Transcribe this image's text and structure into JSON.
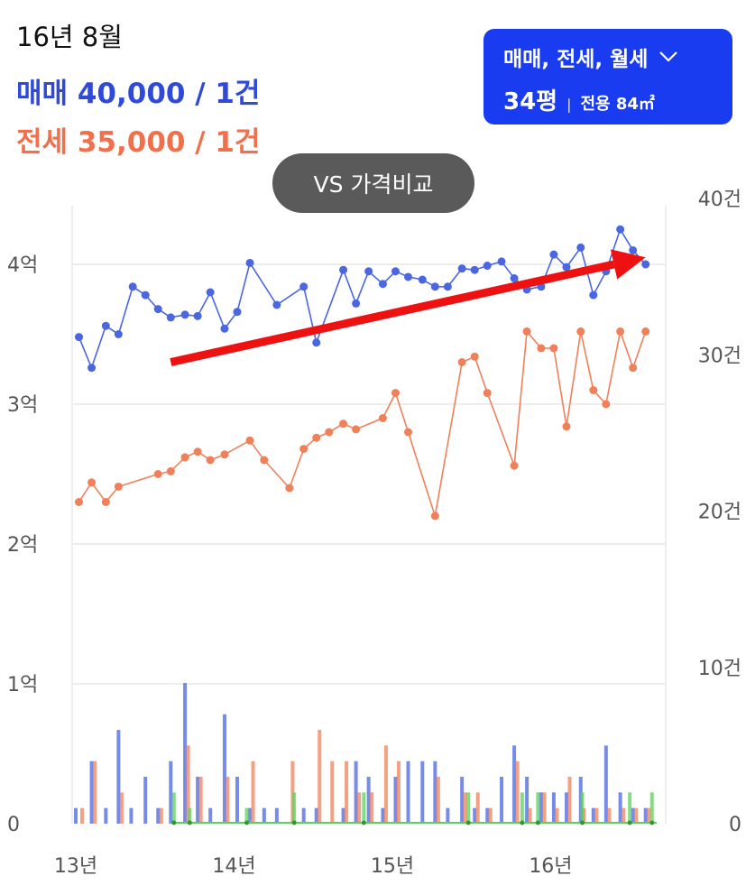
{
  "header": {
    "date": "16년 8월",
    "sale": "매매 40,000 / 1건",
    "jeonse": "전세 35,000 / 1건"
  },
  "filter": {
    "types": "매매, 전세, 월세",
    "chevron": "chevron-down-icon",
    "size": "34평",
    "separator": "|",
    "area": "전용 84㎡"
  },
  "compare_button": {
    "label": "VS 가격비교"
  },
  "colors": {
    "sale": "#4a66e0",
    "jeonse": "#f0805a",
    "monthly": "#5dcf5d",
    "arrow": "#ee1111",
    "accent": "#1a3cf0"
  },
  "chart_data": {
    "type": "line",
    "x_axis": {
      "ticks": [
        "13년",
        "14년",
        "15년",
        "16년"
      ],
      "tick_positions": [
        2013,
        2014,
        2015,
        2016
      ],
      "range": [
        2013.0,
        2016.67
      ]
    },
    "y_left": {
      "ticks": [
        "0",
        "1억",
        "2억",
        "3억",
        "4억"
      ],
      "tick_values": [
        0,
        1,
        2,
        3,
        4
      ],
      "unit": "억원",
      "range": [
        0,
        4.3
      ]
    },
    "y_right": {
      "ticks": [
        "0",
        "10건",
        "20건",
        "30건",
        "40건"
      ],
      "tick_values": [
        0,
        10,
        20,
        30,
        40
      ],
      "unit": "건",
      "range": [
        0,
        40
      ]
    },
    "grid": true,
    "arrow": {
      "from": [
        2013.6,
        3.3
      ],
      "to": [
        2016.6,
        4.05
      ]
    },
    "price_series": [
      {
        "name": "매매",
        "color": "#4a66e0",
        "points": [
          [
            2013.02,
            3.48
          ],
          [
            2013.1,
            3.26
          ],
          [
            2013.19,
            3.56
          ],
          [
            2013.27,
            3.5
          ],
          [
            2013.36,
            3.84
          ],
          [
            2013.44,
            3.78
          ],
          [
            2013.52,
            3.68
          ],
          [
            2013.6,
            3.62
          ],
          [
            2013.69,
            3.64
          ],
          [
            2013.77,
            3.63
          ],
          [
            2013.85,
            3.8
          ],
          [
            2013.94,
            3.54
          ],
          [
            2014.02,
            3.66
          ],
          [
            2014.1,
            4.01
          ],
          [
            2014.27,
            3.71
          ],
          [
            2014.44,
            3.84
          ],
          [
            2014.52,
            3.44
          ],
          [
            2014.69,
            3.96
          ],
          [
            2014.77,
            3.72
          ],
          [
            2014.85,
            3.95
          ],
          [
            2014.94,
            3.86
          ],
          [
            2015.02,
            3.95
          ],
          [
            2015.1,
            3.91
          ],
          [
            2015.19,
            3.89
          ],
          [
            2015.27,
            3.84
          ],
          [
            2015.35,
            3.84
          ],
          [
            2015.44,
            3.97
          ],
          [
            2015.52,
            3.96
          ],
          [
            2015.6,
            3.99
          ],
          [
            2015.69,
            4.02
          ],
          [
            2015.77,
            3.9
          ],
          [
            2015.85,
            3.82
          ],
          [
            2015.94,
            3.84
          ],
          [
            2016.02,
            4.07
          ],
          [
            2016.1,
            3.98
          ],
          [
            2016.19,
            4.12
          ],
          [
            2016.27,
            3.78
          ],
          [
            2016.35,
            3.95
          ],
          [
            2016.44,
            4.25
          ],
          [
            2016.52,
            4.1
          ],
          [
            2016.6,
            4.0
          ]
        ]
      },
      {
        "name": "전세",
        "color": "#f0805a",
        "points": [
          [
            2013.02,
            2.3
          ],
          [
            2013.1,
            2.44
          ],
          [
            2013.19,
            2.3
          ],
          [
            2013.27,
            2.41
          ],
          [
            2013.52,
            2.5
          ],
          [
            2013.6,
            2.52
          ],
          [
            2013.69,
            2.62
          ],
          [
            2013.77,
            2.66
          ],
          [
            2013.85,
            2.6
          ],
          [
            2013.94,
            2.64
          ],
          [
            2014.1,
            2.74
          ],
          [
            2014.19,
            2.6
          ],
          [
            2014.35,
            2.4
          ],
          [
            2014.44,
            2.68
          ],
          [
            2014.52,
            2.76
          ],
          [
            2014.6,
            2.8
          ],
          [
            2014.69,
            2.86
          ],
          [
            2014.77,
            2.82
          ],
          [
            2014.94,
            2.9
          ],
          [
            2015.02,
            3.08
          ],
          [
            2015.1,
            2.8
          ],
          [
            2015.27,
            2.2
          ],
          [
            2015.44,
            3.3
          ],
          [
            2015.52,
            3.34
          ],
          [
            2015.6,
            3.08
          ],
          [
            2015.77,
            2.56
          ],
          [
            2015.85,
            3.52
          ],
          [
            2015.94,
            3.4
          ],
          [
            2016.02,
            3.4
          ],
          [
            2016.1,
            2.84
          ],
          [
            2016.19,
            3.52
          ],
          [
            2016.27,
            3.1
          ],
          [
            2016.35,
            3.0
          ],
          [
            2016.44,
            3.52
          ],
          [
            2016.52,
            3.26
          ],
          [
            2016.6,
            3.52
          ]
        ]
      }
    ],
    "volume_series": [
      {
        "name": "매매",
        "color": "#4a66e0",
        "x": [
          2013.0,
          2013.1,
          2013.19,
          2013.27,
          2013.35,
          2013.44,
          2013.52,
          2013.6,
          2013.69,
          2013.77,
          2013.85,
          2013.94,
          2014.02,
          2014.1,
          2014.19,
          2014.27,
          2014.44,
          2014.52,
          2014.69,
          2014.77,
          2014.85,
          2014.94,
          2015.02,
          2015.1,
          2015.19,
          2015.27,
          2015.35,
          2015.44,
          2015.52,
          2015.6,
          2015.69,
          2015.77,
          2015.85,
          2015.94,
          2016.02,
          2016.1,
          2016.19,
          2016.27,
          2016.35,
          2016.44,
          2016.52,
          2016.6
        ],
        "values": [
          1,
          4,
          1,
          6,
          1,
          3,
          1,
          4,
          9,
          3,
          1,
          7,
          3,
          1,
          1,
          1,
          1,
          1,
          1,
          4,
          3,
          1,
          3,
          4,
          4,
          4,
          1,
          3,
          1,
          1,
          3,
          5,
          3,
          2,
          2,
          2,
          3,
          1,
          5,
          2,
          1,
          1
        ]
      },
      {
        "name": "전세",
        "color": "#f0805a",
        "x": [
          2013.04,
          2013.12,
          2013.29,
          2013.54,
          2013.71,
          2013.79,
          2013.96,
          2014.12,
          2014.37,
          2014.54,
          2014.62,
          2014.71,
          2014.79,
          2014.87,
          2014.96,
          2015.04,
          2015.29,
          2015.46,
          2015.54,
          2015.62,
          2015.79,
          2015.87,
          2015.96,
          2016.04,
          2016.12,
          2016.21,
          2016.29,
          2016.37,
          2016.46,
          2016.54,
          2016.62
        ],
        "values": [
          1,
          4,
          2,
          1,
          5,
          3,
          3,
          4,
          4,
          6,
          4,
          4,
          2,
          2,
          5,
          4,
          3,
          2,
          2,
          1,
          4,
          1,
          2,
          1,
          3,
          1,
          1,
          1,
          1,
          1,
          1
        ]
      },
      {
        "name": "월세",
        "color": "#5dcf5d",
        "x": [
          2013.62,
          2013.72,
          2014.08,
          2014.38,
          2014.82,
          2015.48,
          2015.82,
          2015.92,
          2016.2,
          2016.5,
          2016.64
        ],
        "values": [
          2,
          1,
          1,
          2,
          2,
          2,
          2,
          2,
          2,
          2,
          2
        ]
      }
    ]
  }
}
